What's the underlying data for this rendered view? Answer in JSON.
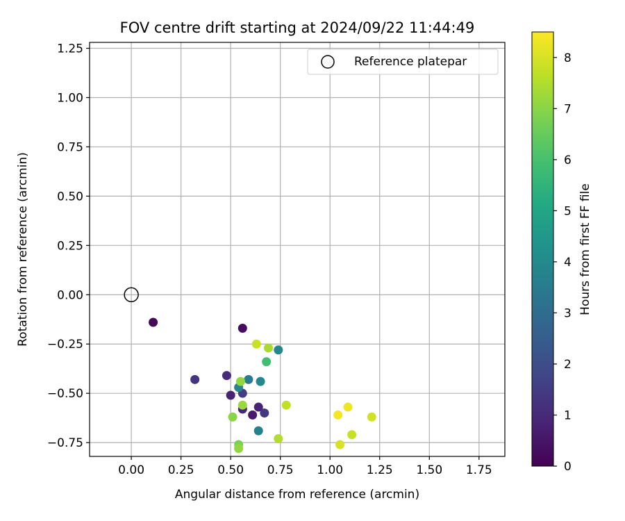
{
  "chart_data": {
    "type": "scatter",
    "title": "FOV centre drift starting at 2024/09/22 11:44:49",
    "xlabel": "Angular distance from reference (arcmin)",
    "ylabel": "Rotation from reference (arcmin)",
    "xlim": [
      -0.21,
      1.88
    ],
    "ylim": [
      -0.82,
      1.28
    ],
    "xticks": [
      0.0,
      0.25,
      0.5,
      0.75,
      1.0,
      1.25,
      1.5,
      1.75
    ],
    "xtick_labels": [
      "0.00",
      "0.25",
      "0.50",
      "0.75",
      "1.00",
      "1.25",
      "1.50",
      "1.75"
    ],
    "yticks": [
      1.25,
      1.0,
      0.75,
      0.5,
      0.25,
      0.0,
      -0.25,
      -0.5,
      -0.75
    ],
    "ytick_labels": [
      "1.25",
      "1.00",
      "0.75",
      "0.50",
      "0.25",
      "0.00",
      "−0.25",
      "−0.50",
      "−0.75"
    ],
    "grid": true,
    "legend": {
      "position": "top-right",
      "entries": [
        "Reference platepar"
      ]
    },
    "reference_point": {
      "x": 0.0,
      "y": 0.0,
      "label": "Reference platepar"
    },
    "colorbar": {
      "label": "Hours from first FF file",
      "min": 0,
      "max": 8.5,
      "ticks": [
        0,
        1,
        2,
        3,
        4,
        5,
        6,
        7,
        8
      ],
      "tick_labels": [
        "0",
        "1",
        "2",
        "3",
        "4",
        "5",
        "6",
        "7",
        "8"
      ],
      "colormap": "viridis"
    },
    "points": [
      {
        "x": 0.11,
        "y": -0.14,
        "hours": 0.2
      },
      {
        "x": 0.56,
        "y": -0.17,
        "hours": 0.3
      },
      {
        "x": 0.32,
        "y": -0.43,
        "hours": 1.3
      },
      {
        "x": 0.48,
        "y": -0.41,
        "hours": 1.1
      },
      {
        "x": 0.5,
        "y": -0.51,
        "hours": 0.8
      },
      {
        "x": 0.56,
        "y": -0.5,
        "hours": 1.5
      },
      {
        "x": 0.56,
        "y": -0.58,
        "hours": 0.9
      },
      {
        "x": 0.61,
        "y": -0.61,
        "hours": 0.6
      },
      {
        "x": 0.64,
        "y": -0.57,
        "hours": 0.8
      },
      {
        "x": 0.67,
        "y": -0.6,
        "hours": 1.4
      },
      {
        "x": 0.54,
        "y": -0.47,
        "hours": 3.8
      },
      {
        "x": 0.59,
        "y": -0.43,
        "hours": 3.5
      },
      {
        "x": 0.65,
        "y": -0.44,
        "hours": 3.9
      },
      {
        "x": 0.74,
        "y": -0.28,
        "hours": 3.9
      },
      {
        "x": 0.64,
        "y": -0.69,
        "hours": 3.7
      },
      {
        "x": 0.68,
        "y": -0.34,
        "hours": 5.9
      },
      {
        "x": 0.55,
        "y": -0.44,
        "hours": 7.1
      },
      {
        "x": 0.56,
        "y": -0.56,
        "hours": 7.2
      },
      {
        "x": 0.51,
        "y": -0.62,
        "hours": 7.0
      },
      {
        "x": 0.54,
        "y": -0.76,
        "hours": 6.8
      },
      {
        "x": 0.54,
        "y": -0.78,
        "hours": 7.1
      },
      {
        "x": 0.63,
        "y": -0.25,
        "hours": 7.8
      },
      {
        "x": 0.69,
        "y": -0.27,
        "hours": 7.4
      },
      {
        "x": 0.74,
        "y": -0.73,
        "hours": 7.5
      },
      {
        "x": 0.78,
        "y": -0.56,
        "hours": 7.7
      },
      {
        "x": 1.04,
        "y": -0.61,
        "hours": 8.4
      },
      {
        "x": 1.09,
        "y": -0.57,
        "hours": 8.3
      },
      {
        "x": 1.05,
        "y": -0.76,
        "hours": 8.0
      },
      {
        "x": 1.11,
        "y": -0.71,
        "hours": 7.8
      },
      {
        "x": 1.21,
        "y": -0.62,
        "hours": 7.9
      }
    ]
  }
}
